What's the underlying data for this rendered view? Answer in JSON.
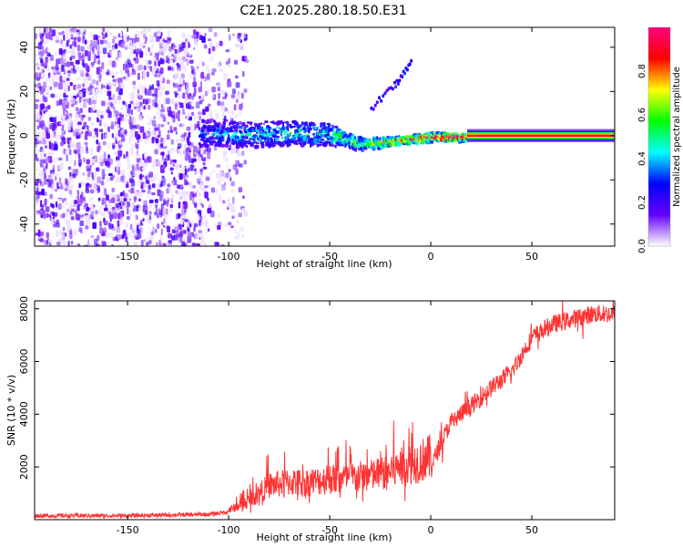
{
  "figure": {
    "title": "C2E1.2025.280.18.50.E31"
  },
  "chart_data": [
    {
      "type": "heatmap",
      "title": "C2E1.2025.280.18.50.E31",
      "xlabel": "Height of straight line (km)",
      "ylabel": "Frequency (Hz)",
      "xlim": [
        -196,
        91
      ],
      "ylim": [
        -50,
        49
      ],
      "xticks": [
        -150,
        -100,
        -50,
        0,
        50
      ],
      "yticks": [
        -40,
        -20,
        0,
        20,
        40
      ],
      "colorbar": {
        "label": "Normalized spectral amplitude",
        "range": [
          0,
          1
        ],
        "ticks": [
          0.0,
          0.2,
          0.4,
          0.6,
          0.8
        ],
        "tick_labels": [
          "0.0",
          "0.2",
          "0.4",
          "0.6",
          "0.8"
        ],
        "colormap": [
          "#ffffff",
          "#6600ff",
          "#0000ff",
          "#00ffff",
          "#00ff00",
          "#ffff00",
          "#ff0000",
          "#ff0080"
        ]
      },
      "features": {
        "noise_region_x": [
          -196,
          -92
        ],
        "main_band": [
          {
            "x": -115,
            "f": 2,
            "width": 9,
            "amp": 0.3
          },
          {
            "x": -90,
            "f": 1,
            "width": 8,
            "amp": 0.35
          },
          {
            "x": -70,
            "f": 2,
            "width": 8,
            "amp": 0.4
          },
          {
            "x": -50,
            "f": 1,
            "width": 7,
            "amp": 0.45
          },
          {
            "x": -35,
            "f": -3,
            "width": 4,
            "amp": 0.55
          },
          {
            "x": -20,
            "f": -2,
            "width": 3,
            "amp": 0.65
          },
          {
            "x": 0,
            "f": 0,
            "width": 3,
            "amp": 0.8
          },
          {
            "x": 18,
            "f": 0,
            "width": 2,
            "amp": 0.95
          },
          {
            "x": 91,
            "f": 0,
            "width": 2,
            "amp": 0.95
          }
        ],
        "secondary_track": [
          {
            "x": -30,
            "f": 13
          },
          {
            "x": -18,
            "f": 24
          },
          {
            "x": -10,
            "f": 34
          }
        ]
      }
    },
    {
      "type": "line",
      "xlabel": "Height of straight line (km)",
      "ylabel": "SNR (10 * v/v)",
      "xlim": [
        -196,
        91
      ],
      "ylim": [
        0,
        8300
      ],
      "xticks": [
        -150,
        -100,
        -50,
        0,
        50
      ],
      "yticks": [
        2000,
        4000,
        6000,
        8000
      ],
      "series": [
        {
          "color": "#ff3333",
          "x": [
            -196,
            -150,
            -110,
            -100,
            -90,
            -80,
            -70,
            -60,
            -50,
            -40,
            -30,
            -20,
            -10,
            0,
            5,
            10,
            15,
            20,
            30,
            40,
            50,
            60,
            70,
            80,
            91
          ],
          "y": [
            150,
            150,
            200,
            300,
            600,
            1100,
            1200,
            1200,
            1300,
            1350,
            1400,
            1550,
            1800,
            2000,
            2900,
            3700,
            4000,
            4300,
            5000,
            5600,
            6900,
            7400,
            7600,
            7800,
            7800
          ]
        }
      ]
    }
  ]
}
